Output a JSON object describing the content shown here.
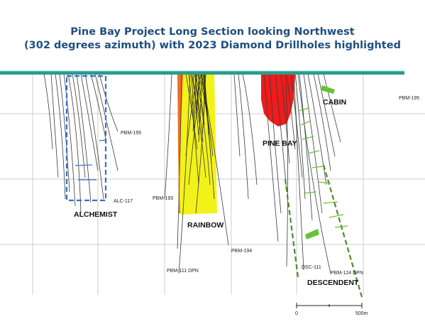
{
  "title": {
    "line1": "Pine Bay Project Long Section looking Northwest",
    "line2": "(302 degrees azimuth) with 2023 Diamond Drillholes highlighted"
  },
  "zones": {
    "alchemist": "ALCHEMIST",
    "rainbow": "RAINBOW",
    "pine_bay": "PINE BAY",
    "cabin": "CABIN",
    "descendent": "DESCENDENT"
  },
  "holes": {
    "pbm195_left": "PBM-195",
    "pbm195_right": "PBM-195",
    "alc117": "ALC-117",
    "pbm193": "PBM-193",
    "pbm194": "PBM-194",
    "pbm111": "PBM-111 DPN",
    "dsc111": "DSC-111",
    "pbm124": "PBM-124 DPN"
  },
  "scale_bar": {
    "start": "0",
    "end": "500m"
  },
  "colors": {
    "title": "#1f4f7f",
    "surface": "#2a9c8c",
    "rainbow_zone": "#f2f21a",
    "rainbow_edge": "#f07020",
    "pine_bay_zone": "#ee1c1c",
    "zone_outline_blue": "#3a6fc0",
    "zone_outline_green": "#4e8a2a",
    "highlight_green": "#66c23a",
    "grid": "#c8c8c8",
    "drillhole": "#333333"
  }
}
